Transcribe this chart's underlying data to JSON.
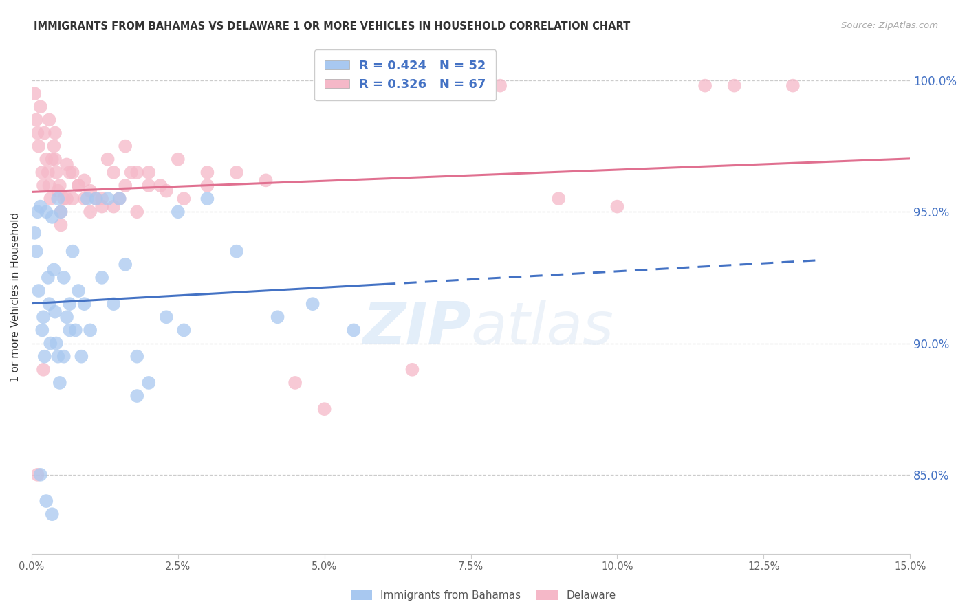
{
  "title": "IMMIGRANTS FROM BAHAMAS VS DELAWARE 1 OR MORE VEHICLES IN HOUSEHOLD CORRELATION CHART",
  "source": "Source: ZipAtlas.com",
  "ylabel": "1 or more Vehicles in Household",
  "x_min": 0.0,
  "x_max": 15.0,
  "y_min": 82.0,
  "y_max": 101.5,
  "yticks": [
    85.0,
    90.0,
    95.0,
    100.0
  ],
  "xticks": [
    0.0,
    2.5,
    5.0,
    7.5,
    10.0,
    12.5,
    15.0
  ],
  "legend_R1": "R = 0.424",
  "legend_N1": "N = 52",
  "legend_R2": "R = 0.326",
  "legend_N2": "N = 67",
  "label1": "Immigrants from Bahamas",
  "label2": "Delaware",
  "color1": "#a8c8f0",
  "color2": "#f5b8c8",
  "line_color1": "#4472c4",
  "line_color2": "#e07090",
  "watermark_zip": "ZIP",
  "watermark_atlas": "atlas",
  "blue_x": [
    0.05,
    0.08,
    0.1,
    0.12,
    0.15,
    0.18,
    0.2,
    0.22,
    0.25,
    0.28,
    0.3,
    0.32,
    0.35,
    0.38,
    0.4,
    0.42,
    0.45,
    0.48,
    0.5,
    0.55,
    0.6,
    0.65,
    0.7,
    0.8,
    0.9,
    1.0,
    1.2,
    1.4,
    1.6,
    1.8,
    2.0,
    2.3,
    2.6,
    3.0,
    3.5,
    4.2,
    4.8,
    5.5,
    0.15,
    0.25,
    0.35,
    0.45,
    0.55,
    0.65,
    0.75,
    0.85,
    0.95,
    1.1,
    1.3,
    1.5,
    1.8,
    2.5
  ],
  "blue_y": [
    94.2,
    93.5,
    95.0,
    92.0,
    95.2,
    90.5,
    91.0,
    89.5,
    95.0,
    92.5,
    91.5,
    90.0,
    94.8,
    92.8,
    91.2,
    90.0,
    89.5,
    88.5,
    95.0,
    92.5,
    91.0,
    90.5,
    93.5,
    92.0,
    91.5,
    90.5,
    92.5,
    91.5,
    93.0,
    89.5,
    88.5,
    91.0,
    90.5,
    95.5,
    93.5,
    91.0,
    91.5,
    90.5,
    85.0,
    84.0,
    83.5,
    95.5,
    89.5,
    91.5,
    90.5,
    89.5,
    95.5,
    95.5,
    95.5,
    95.5,
    88.0,
    95.0
  ],
  "pink_x": [
    0.05,
    0.08,
    0.1,
    0.12,
    0.15,
    0.18,
    0.2,
    0.22,
    0.25,
    0.28,
    0.3,
    0.32,
    0.35,
    0.38,
    0.4,
    0.42,
    0.45,
    0.48,
    0.5,
    0.55,
    0.6,
    0.65,
    0.7,
    0.8,
    0.9,
    1.0,
    1.2,
    1.4,
    1.6,
    1.8,
    2.0,
    2.3,
    2.6,
    3.0,
    3.5,
    4.0,
    4.5,
    5.0,
    6.5,
    8.0,
    9.0,
    10.0,
    11.5,
    12.0,
    13.0,
    0.1,
    0.2,
    0.3,
    0.4,
    0.5,
    0.6,
    0.7,
    0.8,
    0.9,
    1.0,
    1.1,
    1.2,
    1.3,
    1.4,
    1.5,
    1.6,
    1.7,
    1.8,
    2.0,
    2.2,
    2.5,
    3.0
  ],
  "pink_y": [
    99.5,
    98.5,
    98.0,
    97.5,
    99.0,
    96.5,
    96.0,
    98.0,
    97.0,
    96.5,
    96.0,
    95.5,
    97.0,
    97.5,
    97.0,
    96.5,
    95.8,
    96.0,
    95.0,
    95.5,
    96.8,
    96.5,
    95.5,
    96.0,
    95.5,
    95.0,
    95.5,
    95.2,
    97.5,
    96.5,
    96.0,
    95.8,
    95.5,
    96.0,
    96.5,
    96.2,
    88.5,
    87.5,
    89.0,
    99.8,
    95.5,
    95.2,
    99.8,
    99.8,
    99.8,
    85.0,
    89.0,
    98.5,
    98.0,
    94.5,
    95.5,
    96.5,
    96.0,
    96.2,
    95.8,
    95.5,
    95.2,
    97.0,
    96.5,
    95.5,
    96.0,
    96.5,
    95.0,
    96.5,
    96.0,
    97.0,
    96.5
  ]
}
